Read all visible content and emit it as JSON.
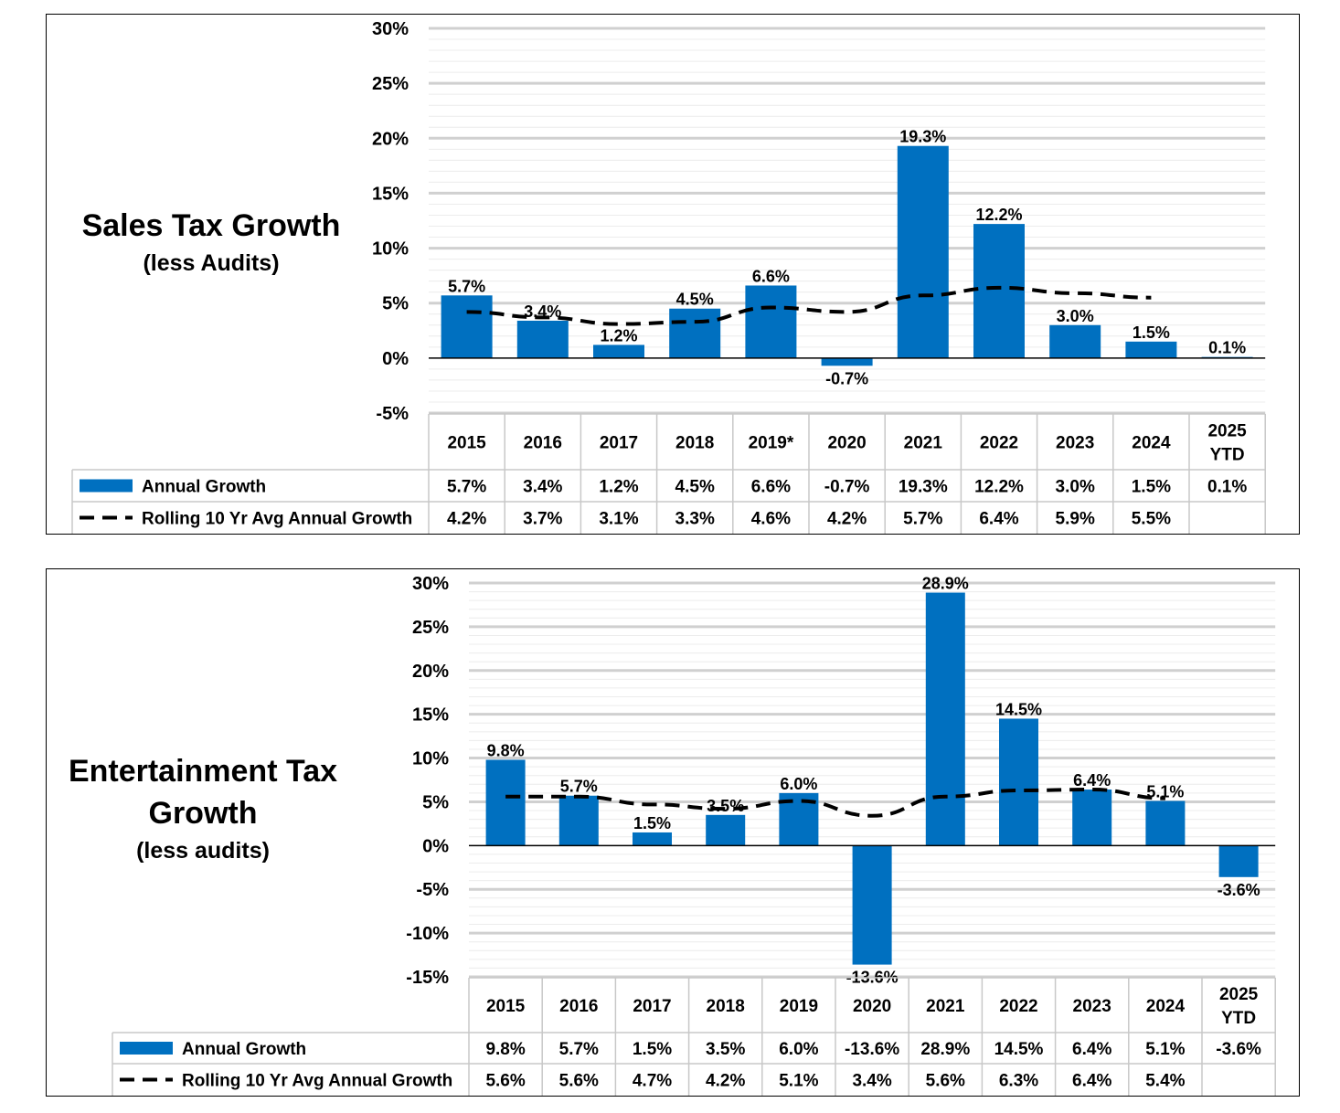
{
  "charts": [
    {
      "title_main": "Sales Tax Growth",
      "title_sub": "(less Audits)"
    },
    {
      "title_main": "Entertainment Tax Growth",
      "title_sub": "(less audits)"
    }
  ],
  "chart_data": [
    {
      "type": "bar",
      "title": "Sales Tax Growth",
      "subtitle": "(less Audits)",
      "categories": [
        "2015",
        "2016",
        "2017",
        "2018",
        "2019*",
        "2020",
        "2021",
        "2022",
        "2023",
        "2024",
        "2025 YTD"
      ],
      "yticks": [
        "30%",
        "25%",
        "20%",
        "15%",
        "10%",
        "5%",
        "0%",
        "-5%"
      ],
      "ylim": [
        -5,
        30
      ],
      "grid": true,
      "bar_color": "#0070C0",
      "series": [
        {
          "name": "Annual Growth",
          "type": "bar",
          "values": [
            5.7,
            3.4,
            1.2,
            4.5,
            6.6,
            -0.7,
            19.3,
            12.2,
            3.0,
            1.5,
            0.1
          ],
          "labels": [
            "5.7%",
            "3.4%",
            "1.2%",
            "4.5%",
            "6.6%",
            "-0.7%",
            "19.3%",
            "12.2%",
            "3.0%",
            "1.5%",
            "0.1%"
          ]
        },
        {
          "name": "Rolling 10 Yr Avg Annual Growth",
          "type": "line-dashed",
          "values": [
            4.2,
            3.7,
            3.1,
            3.3,
            4.6,
            4.2,
            5.7,
            6.4,
            5.9,
            5.5,
            null
          ],
          "labels": [
            "4.2%",
            "3.7%",
            "3.1%",
            "3.3%",
            "4.6%",
            "4.2%",
            "5.7%",
            "6.4%",
            "5.9%",
            "5.5%",
            ""
          ]
        }
      ]
    },
    {
      "type": "bar",
      "title": "Entertainment Tax Growth",
      "subtitle": "(less audits)",
      "categories": [
        "2015",
        "2016",
        "2017",
        "2018",
        "2019",
        "2020",
        "2021",
        "2022",
        "2023",
        "2024",
        "2025 YTD"
      ],
      "yticks": [
        "30%",
        "25%",
        "20%",
        "15%",
        "10%",
        "5%",
        "0%",
        "-5%",
        "-10%",
        "-15%"
      ],
      "ylim": [
        -15,
        30
      ],
      "grid": true,
      "bar_color": "#0070C0",
      "series": [
        {
          "name": "Annual Growth",
          "type": "bar",
          "values": [
            9.8,
            5.7,
            1.5,
            3.5,
            6.0,
            -13.6,
            28.9,
            14.5,
            6.4,
            5.1,
            -3.6
          ],
          "labels": [
            "9.8%",
            "5.7%",
            "1.5%",
            "3.5%",
            "6.0%",
            "-13.6%",
            "28.9%",
            "14.5%",
            "6.4%",
            "5.1%",
            "-3.6%"
          ]
        },
        {
          "name": "Rolling 10 Yr Avg Annual Growth",
          "type": "line-dashed",
          "values": [
            5.6,
            5.6,
            4.7,
            4.2,
            5.1,
            3.4,
            5.6,
            6.3,
            6.4,
            5.4,
            null
          ],
          "labels": [
            "5.6%",
            "5.6%",
            "4.7%",
            "4.2%",
            "5.1%",
            "3.4%",
            "5.6%",
            "6.3%",
            "6.4%",
            "5.4%",
            ""
          ]
        }
      ]
    }
  ]
}
